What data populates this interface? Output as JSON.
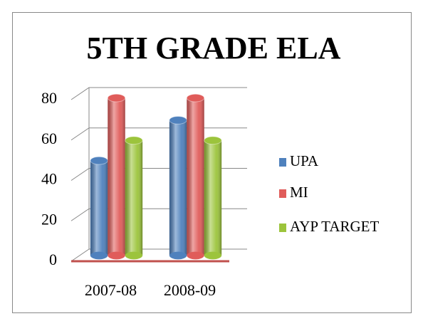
{
  "chart_data": {
    "type": "bar",
    "title": "5TH GRADE ELA",
    "categories": [
      "2007-08",
      "2008-09"
    ],
    "series": [
      {
        "name": "UPA",
        "color": "#4f81bd",
        "values": [
          47,
          67
        ]
      },
      {
        "name": "MI",
        "color": "#e05c5a",
        "values": [
          78,
          78
        ]
      },
      {
        "name": "AYP TARGET",
        "color": "#9cc43c",
        "values": [
          57,
          57
        ]
      }
    ],
    "ylim": [
      0,
      80
    ],
    "yticks": [
      0,
      20,
      40,
      60,
      80
    ],
    "grid": true,
    "legend": "right"
  }
}
